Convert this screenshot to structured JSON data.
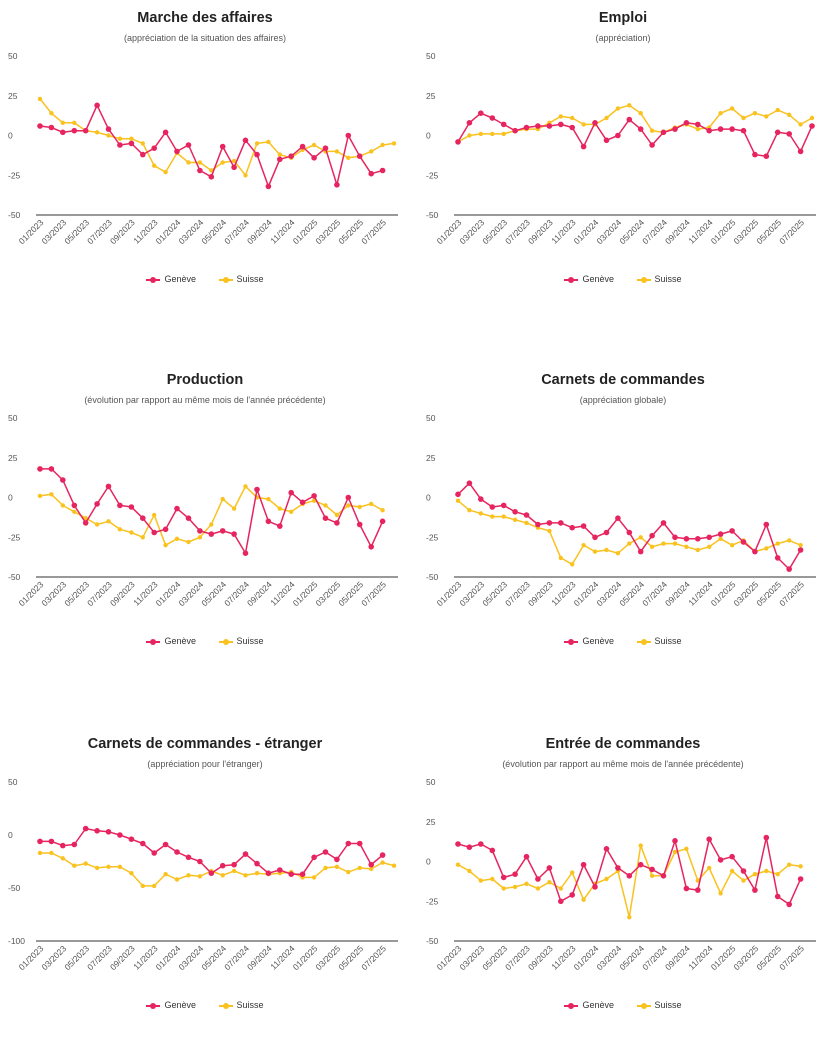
{
  "colors": {
    "geneve": "#e6245f",
    "suisse": "#f9c21f",
    "grid": "#e6e6e6",
    "axis": "#333333"
  },
  "legend": {
    "geneve": "Genève",
    "suisse": "Suisse"
  },
  "chart_data": [
    {
      "type": "line",
      "title": "Marche des affaires",
      "subtitle": "(appréciation de la situation des affaires)",
      "ylim": [
        -50,
        50
      ],
      "yticks": [
        50,
        25,
        0,
        -25,
        -50
      ],
      "grid": false,
      "legend_position": "bottom",
      "x_tick_labels": [
        "01/2023",
        "03/2023",
        "05/2023",
        "07/2023",
        "09/2023",
        "11/2023",
        "01/2024",
        "03/2024",
        "05/2024",
        "07/2024",
        "09/2024",
        "11/2024",
        "01/2025",
        "03/2025",
        "05/2025",
        "07/2025"
      ],
      "series": [
        {
          "name": "Genève",
          "values": [
            6,
            5,
            2,
            3,
            3,
            19,
            4,
            -6,
            -5,
            -12,
            -8,
            2,
            -10,
            -6,
            -22,
            -26,
            -7,
            -20,
            -3,
            -12,
            -32,
            -15,
            -13,
            -7,
            -14,
            -8,
            -31,
            0,
            -13,
            -24,
            -22
          ]
        },
        {
          "name": "Suisse",
          "values": [
            23,
            14,
            8,
            8,
            3,
            2,
            0,
            -2,
            -2,
            -5,
            -19,
            -23,
            -11,
            -17,
            -17,
            -22,
            -17,
            -16,
            -25,
            -5,
            -4,
            -12,
            -14,
            -9,
            -6,
            -10,
            -10,
            -14,
            -13,
            -10,
            -6,
            -5
          ]
        }
      ]
    },
    {
      "type": "line",
      "title": "Emploi",
      "subtitle": "(appréciation)",
      "ylim": [
        -50,
        50
      ],
      "yticks": [
        50,
        25,
        0,
        -25,
        -50
      ],
      "grid": false,
      "legend_position": "bottom",
      "x_tick_labels": [
        "01/2023",
        "03/2023",
        "05/2023",
        "07/2023",
        "09/2023",
        "11/2023",
        "01/2024",
        "03/2024",
        "05/2024",
        "07/2024",
        "09/2024",
        "11/2024",
        "01/2025",
        "03/2025",
        "05/2025",
        "07/2025"
      ],
      "series": [
        {
          "name": "Genève",
          "values": [
            -4,
            8,
            14,
            11,
            7,
            3,
            5,
            6,
            6,
            7,
            5,
            -7,
            8,
            -3,
            0,
            10,
            4,
            -6,
            2,
            4,
            8,
            7,
            3,
            4,
            4,
            3,
            -12,
            -13,
            2,
            1,
            -10,
            6
          ]
        },
        {
          "name": "Suisse",
          "values": [
            -4,
            0,
            1,
            1,
            1,
            3,
            4,
            4,
            8,
            12,
            11,
            7,
            7,
            11,
            17,
            19,
            14,
            3,
            2,
            5,
            7,
            4,
            5,
            14,
            17,
            11,
            14,
            12,
            16,
            13,
            7,
            11
          ]
        }
      ]
    },
    {
      "type": "line",
      "title": "Production",
      "subtitle": "(évolution par rapport au même mois de l'année précédente)",
      "ylim": [
        -50,
        50
      ],
      "yticks": [
        50,
        25,
        0,
        -25,
        -50
      ],
      "grid": false,
      "legend_position": "bottom",
      "x_tick_labels": [
        "01/2023",
        "03/2023",
        "05/2023",
        "07/2023",
        "09/2023",
        "11/2023",
        "01/2024",
        "03/2024",
        "05/2024",
        "07/2024",
        "09/2024",
        "11/2024",
        "01/2025",
        "03/2025",
        "05/2025",
        "07/2025"
      ],
      "series": [
        {
          "name": "Genève",
          "values": [
            18,
            18,
            11,
            -5,
            -16,
            -4,
            7,
            -5,
            -6,
            -13,
            -22,
            -20,
            -7,
            -13,
            -21,
            -23,
            -21,
            -23,
            -35,
            5,
            -15,
            -18,
            3,
            -3,
            1,
            -13,
            -16,
            0,
            -17,
            -31,
            -15
          ]
        },
        {
          "name": "Suisse",
          "values": [
            1,
            2,
            -5,
            -9,
            -13,
            -17,
            -15,
            -20,
            -22,
            -25,
            -11,
            -30,
            -26,
            -28,
            -25,
            -17,
            -1,
            -7,
            7,
            0,
            -1,
            -7,
            -9,
            -4,
            -2,
            -5,
            -11,
            -5,
            -6,
            -4,
            -8
          ]
        }
      ]
    },
    {
      "type": "line",
      "title": "Carnets de commandes",
      "subtitle": "(appréciation globale)",
      "ylim": [
        -50,
        50
      ],
      "yticks": [
        50,
        25,
        0,
        -25,
        -50
      ],
      "grid": false,
      "legend_position": "bottom",
      "x_tick_labels": [
        "01/2023",
        "03/2023",
        "05/2023",
        "07/2023",
        "09/2023",
        "11/2023",
        "01/2024",
        "03/2024",
        "05/2024",
        "07/2024",
        "09/2024",
        "11/2024",
        "01/2025",
        "03/2025",
        "05/2025",
        "07/2025"
      ],
      "series": [
        {
          "name": "Genève",
          "values": [
            2,
            9,
            -1,
            -6,
            -5,
            -9,
            -11,
            -17,
            -16,
            -16,
            -19,
            -18,
            -25,
            -22,
            -13,
            -22,
            -34,
            -24,
            -16,
            -25,
            -26,
            -26,
            -25,
            -23,
            -21,
            -28,
            -34,
            -17,
            -38,
            -45,
            -33
          ]
        },
        {
          "name": "Suisse",
          "values": [
            -2,
            -8,
            -10,
            -12,
            -12,
            -14,
            -16,
            -19,
            -21,
            -38,
            -42,
            -30,
            -34,
            -33,
            -35,
            -29,
            -25,
            -31,
            -29,
            -29,
            -31,
            -33,
            -31,
            -26,
            -30,
            -27,
            -34,
            -32,
            -29,
            -27,
            -30
          ]
        }
      ]
    },
    {
      "type": "line",
      "title": "Carnets de commandes - étranger",
      "subtitle": "(appréciation pour l'étranger)",
      "ylim": [
        -100,
        50
      ],
      "yticks": [
        50,
        0,
        -50,
        -100
      ],
      "grid": false,
      "legend_position": "bottom",
      "x_tick_labels": [
        "01/2023",
        "03/2023",
        "05/2023",
        "07/2023",
        "09/2023",
        "11/2023",
        "01/2024",
        "03/2024",
        "05/2024",
        "07/2024",
        "09/2024",
        "11/2024",
        "01/2025",
        "03/2025",
        "05/2025",
        "07/2025"
      ],
      "series": [
        {
          "name": "Genève",
          "values": [
            -6,
            -6,
            -10,
            -9,
            6,
            4,
            3,
            0,
            -4,
            -8,
            -17,
            -9,
            -16,
            -21,
            -25,
            -36,
            -29,
            -28,
            -18,
            -27,
            -36,
            -33,
            -37,
            -37,
            -21,
            -16,
            -23,
            -8,
            -8,
            -28,
            -19
          ]
        },
        {
          "name": "Suisse",
          "values": [
            -17,
            -17,
            -22,
            -29,
            -27,
            -31,
            -30,
            -30,
            -36,
            -48,
            -48,
            -37,
            -42,
            -38,
            -39,
            -34,
            -38,
            -34,
            -38,
            -36,
            -37,
            -36,
            -35,
            -40,
            -40,
            -31,
            -30,
            -35,
            -31,
            -32,
            -26,
            -29
          ]
        }
      ]
    },
    {
      "type": "line",
      "title": "Entrée de commandes",
      "subtitle": "(évolution par rapport au même mois de l'année précédente)",
      "ylim": [
        -50,
        50
      ],
      "yticks": [
        50,
        25,
        0,
        -25,
        -50
      ],
      "grid": false,
      "legend_position": "bottom",
      "x_tick_labels": [
        "01/2023",
        "03/2023",
        "05/2023",
        "07/2023",
        "09/2023",
        "11/2023",
        "01/2024",
        "03/2024",
        "05/2024",
        "07/2024",
        "09/2024",
        "11/2024",
        "01/2025",
        "03/2025",
        "05/2025",
        "07/2025"
      ],
      "series": [
        {
          "name": "Genève",
          "values": [
            11,
            9,
            11,
            7,
            -10,
            -8,
            3,
            -11,
            -4,
            -25,
            -21,
            -2,
            -16,
            8,
            -4,
            -9,
            -2,
            -5,
            -9,
            13,
            -17,
            -18,
            14,
            1,
            3,
            -6,
            -18,
            15,
            -22,
            -27,
            -11
          ]
        },
        {
          "name": "Suisse",
          "values": [
            -2,
            -6,
            -12,
            -11,
            -17,
            -16,
            -14,
            -17,
            -13,
            -17,
            -7,
            -24,
            -14,
            -11,
            -6,
            -35,
            10,
            -9,
            -9,
            6,
            8,
            -12,
            -4,
            -20,
            -6,
            -12,
            -8,
            -6,
            -8,
            -2,
            -3
          ]
        }
      ]
    }
  ]
}
